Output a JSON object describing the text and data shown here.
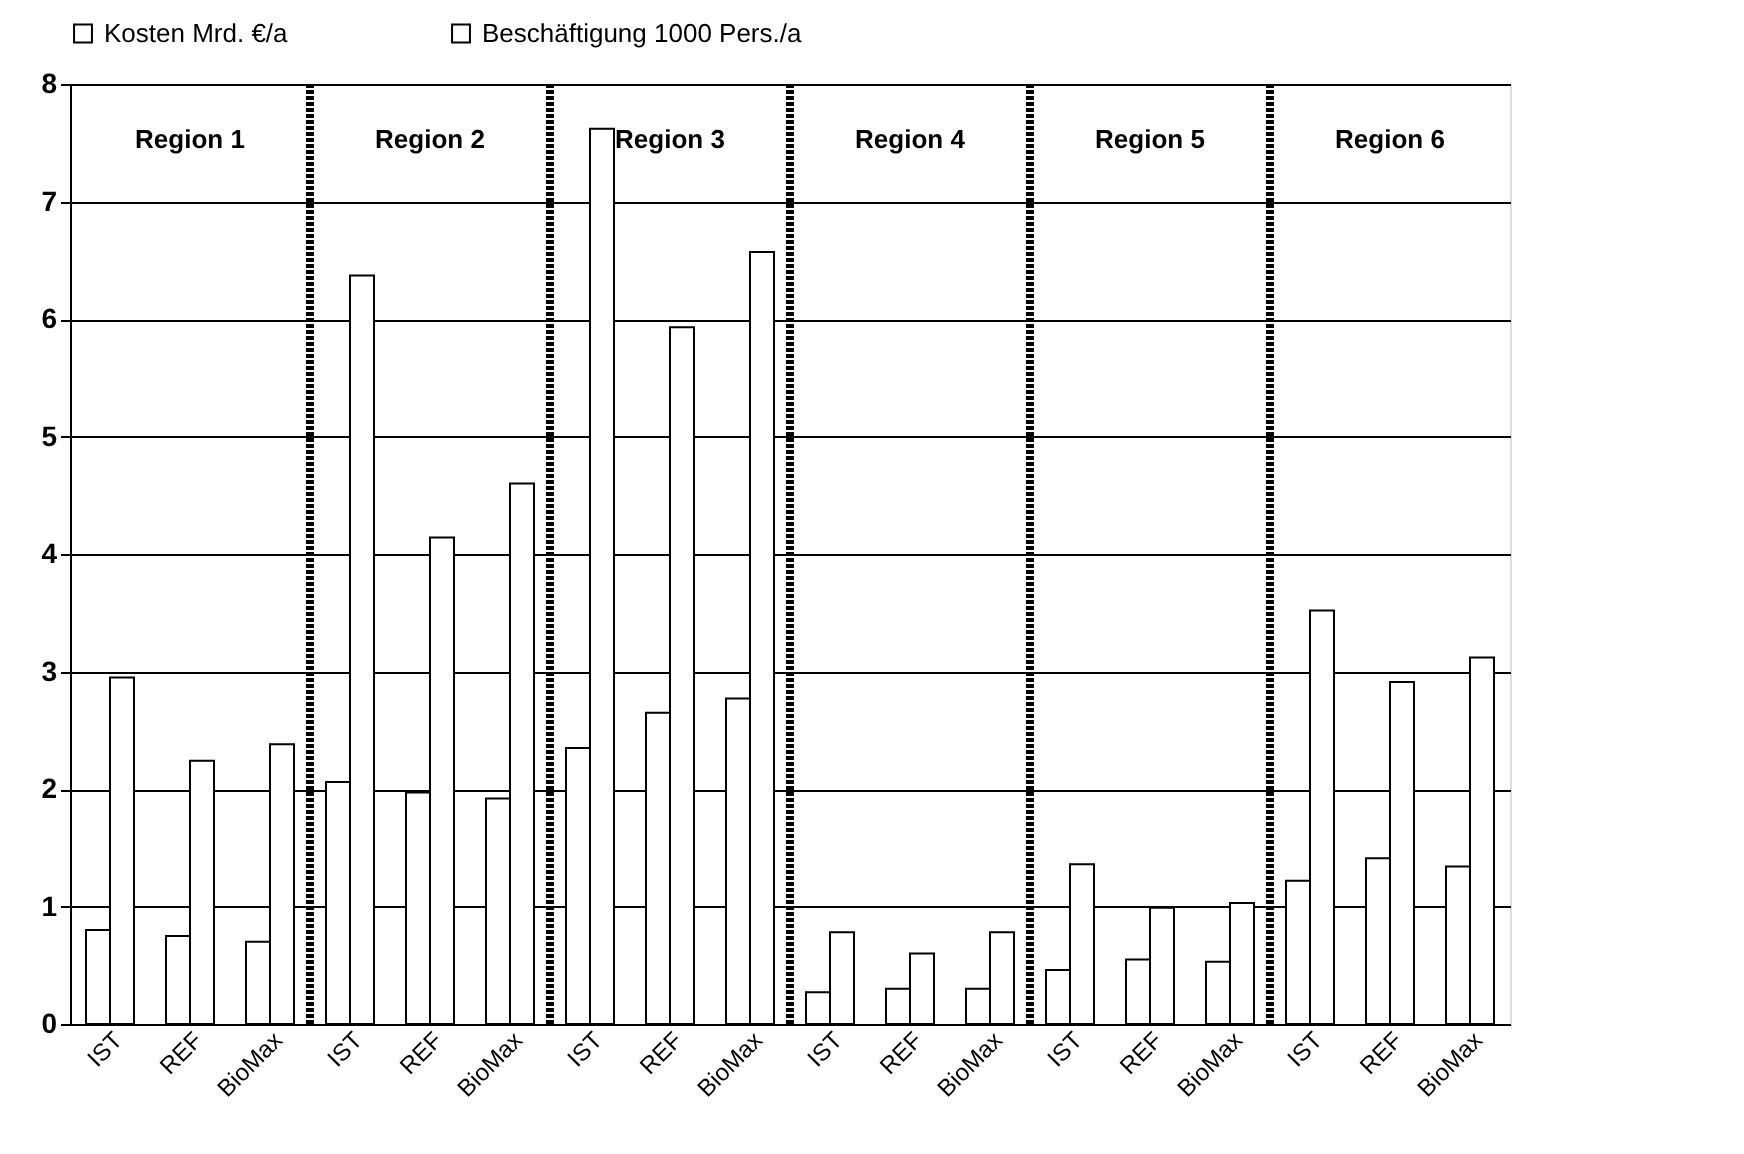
{
  "chart_data": {
    "type": "bar",
    "categories": [
      "IST",
      "REF",
      "BioMax",
      "IST",
      "REF",
      "BioMax",
      "IST",
      "REF",
      "BioMax",
      "IST",
      "REF",
      "BioMax",
      "IST",
      "REF",
      "BioMax",
      "IST",
      "REF",
      "BioMax"
    ],
    "series": [
      {
        "name": "Kosten Mrd. €/a",
        "color": "#ffffff",
        "values": [
          0.8,
          0.75,
          0.7,
          2.06,
          1.97,
          1.92,
          2.35,
          2.65,
          2.77,
          0.27,
          0.3,
          0.3,
          0.46,
          0.55,
          0.53,
          1.22,
          1.41,
          1.34
        ]
      },
      {
        "name": "Beschäftigung 1000 Pers./a",
        "color": "#ffffff",
        "values": [
          2.95,
          2.24,
          2.38,
          6.37,
          4.14,
          4.6,
          7.62,
          5.93,
          6.57,
          0.78,
          0.6,
          0.78,
          1.36,
          0.99,
          1.03,
          3.52,
          2.91,
          3.12
        ]
      }
    ],
    "annotations": [
      "Region 1",
      "Region 2",
      "Region 3",
      "Region 4",
      "Region 5",
      "Region 6"
    ],
    "ylim": [
      0,
      8
    ],
    "yticks": [
      0,
      1,
      2,
      3,
      4,
      5,
      6,
      7,
      8
    ],
    "grid": "y",
    "legend": "top"
  }
}
